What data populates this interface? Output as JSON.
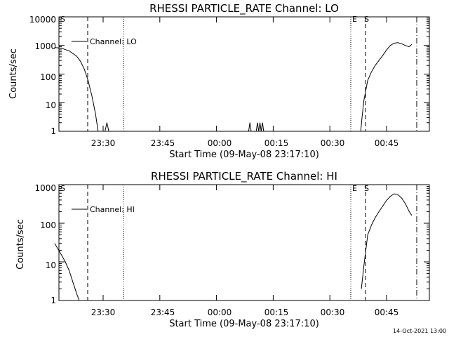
{
  "chart_data": [
    {
      "type": "line",
      "title": "RHESSI PARTICLE_RATE Channel: LO",
      "xlabel": "Start Time (09-May-08 23:17:10)",
      "ylabel": "Counts/sec",
      "yscale": "log",
      "ylim": [
        1,
        10000
      ],
      "ytick_labels": [
        "1",
        "10",
        "100",
        "1000",
        "10000"
      ],
      "xtick_labels": [
        "23:30",
        "23:45",
        "00:00",
        "00:15",
        "00:30",
        "00:45"
      ],
      "legend": "Channel: LO",
      "markers": [
        "S",
        "E",
        "S"
      ],
      "series": [
        {
          "name": "Channel: LO",
          "segments": [
            [
              [
                "23:17:10",
                850
              ],
              [
                "23:19",
                800
              ],
              [
                "23:21",
                650
              ],
              [
                "23:23",
                420
              ],
              [
                "23:24",
                280
              ],
              [
                "23:25",
                150
              ],
              [
                "23:26",
                60
              ],
              [
                "23:27",
                18
              ],
              [
                "23:28",
                4
              ],
              [
                "23:28:40",
                1
              ]
            ],
            [
              [
                "23:30:30",
                1
              ],
              [
                "23:31",
                2
              ],
              [
                "23:31:30",
                1
              ]
            ],
            [
              [
                "00:08:30",
                1
              ],
              [
                "00:08:50",
                2
              ],
              [
                "00:09:10",
                1
              ]
            ],
            [
              [
                "00:10:30",
                1
              ],
              [
                "00:10:50",
                2
              ],
              [
                "00:11:10",
                1
              ],
              [
                "00:11:30",
                2
              ],
              [
                "00:11:50",
                1
              ],
              [
                "00:12:10",
                2
              ],
              [
                "00:12:30",
                1
              ]
            ],
            [
              [
                "00:38:10",
                1
              ],
              [
                "00:38:30",
                3
              ],
              [
                "00:39",
                12
              ],
              [
                "00:40",
                60
              ],
              [
                "00:41",
                120
              ],
              [
                "00:42",
                200
              ],
              [
                "00:43",
                300
              ],
              [
                "00:44",
                450
              ],
              [
                "00:45",
                700
              ],
              [
                "00:46",
                1000
              ],
              [
                "00:47",
                1200
              ],
              [
                "00:48",
                1250
              ],
              [
                "00:49",
                1150
              ],
              [
                "00:50",
                1000
              ],
              [
                "00:51",
                900
              ],
              [
                "00:51:40",
                1100
              ]
            ]
          ]
        }
      ]
    },
    {
      "type": "line",
      "title": "RHESSI PARTICLE_RATE Channel: HI",
      "xlabel": "Start Time (09-May-08 23:17:10)",
      "ylabel": "Counts/sec",
      "yscale": "log",
      "ylim": [
        1,
        1000
      ],
      "ytick_labels": [
        "1",
        "10",
        "100",
        "1000"
      ],
      "xtick_labels": [
        "23:30",
        "23:45",
        "00:00",
        "00:15",
        "00:30",
        "00:45"
      ],
      "legend": "Channel: HI",
      "markers": [
        "S",
        "E",
        "S"
      ],
      "series": [
        {
          "name": "Channel: HI",
          "segments": [
            [
              [
                "23:17:10",
                30
              ],
              [
                "23:18",
                22
              ],
              [
                "23:19",
                15
              ],
              [
                "23:20",
                10
              ],
              [
                "23:21",
                6
              ],
              [
                "23:22",
                3
              ],
              [
                "23:23",
                1.5
              ],
              [
                "23:23:40",
                1
              ]
            ],
            [
              [
                "00:38:20",
                2
              ],
              [
                "00:39",
                8
              ],
              [
                "00:40",
                50
              ],
              [
                "00:41",
                90
              ],
              [
                "00:42",
                140
              ],
              [
                "00:43",
                200
              ],
              [
                "00:44",
                280
              ],
              [
                "00:45",
                390
              ],
              [
                "00:46",
                500
              ],
              [
                "00:47",
                580
              ],
              [
                "00:48",
                550
              ],
              [
                "00:49",
                450
              ],
              [
                "00:50",
                320
              ],
              [
                "00:51",
                200
              ],
              [
                "00:51:40",
                160
              ]
            ]
          ]
        }
      ]
    }
  ],
  "footer": {
    "timestamp": "14-Oct-2021 13:00"
  }
}
